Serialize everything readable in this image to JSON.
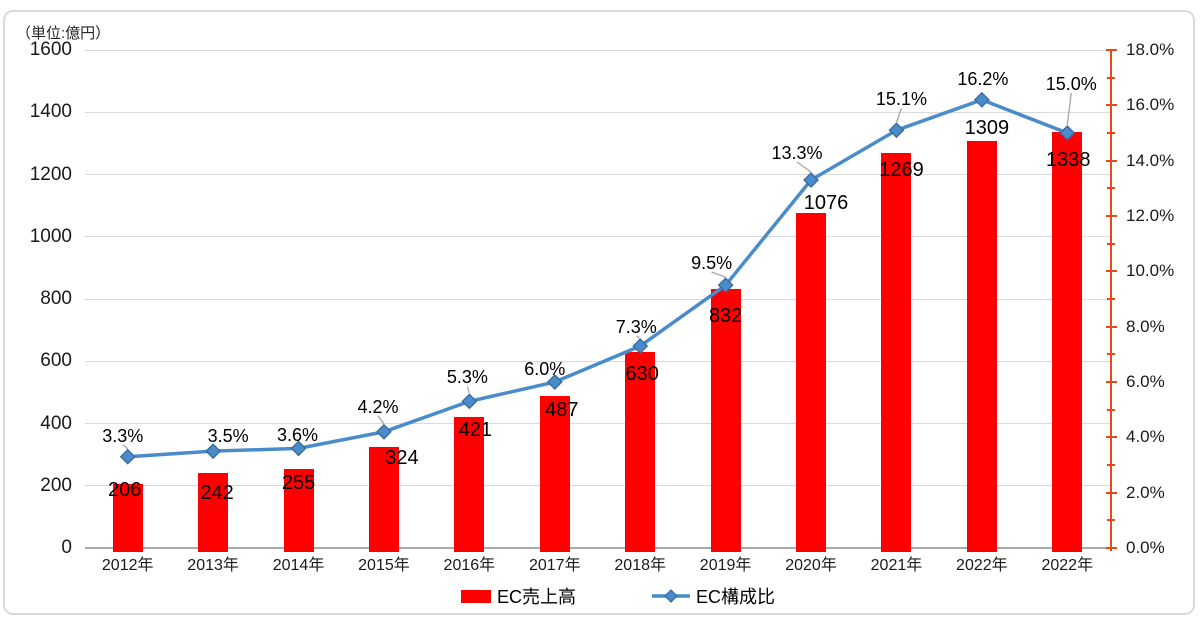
{
  "chart_data": {
    "type": "combo-bar-line",
    "unit_label": "（単位:億円）",
    "categories": [
      "2012年",
      "2013年",
      "2014年",
      "2015年",
      "2016年",
      "2017年",
      "2018年",
      "2019年",
      "2020年",
      "2021年",
      "2022年",
      "2022年"
    ],
    "series": [
      {
        "name": "EC売上高",
        "type": "bar",
        "axis": "left",
        "color": "#fe0000",
        "values": [
          206,
          242,
          255,
          324,
          421,
          487,
          630,
          832,
          1076,
          1269,
          1309,
          1338
        ],
        "value_labels": [
          "206",
          "242",
          "255",
          "324",
          "421",
          "487",
          "630",
          "832",
          "1076",
          "1269",
          "1309",
          "1338"
        ]
      },
      {
        "name": "EC構成比",
        "type": "line",
        "axis": "right",
        "color": "#4a8ccb",
        "marker": "diamond",
        "marker_stroke": "#36699e",
        "values": [
          3.3,
          3.5,
          3.6,
          4.2,
          5.3,
          6.0,
          7.3,
          9.5,
          13.3,
          15.1,
          16.2,
          15.0
        ],
        "value_labels": [
          "3.3%",
          "3.5%",
          "3.6%",
          "4.2%",
          "5.3%",
          "6.0%",
          "7.3%",
          "9.5%",
          "13.3%",
          "15.1%",
          "16.2%",
          "15.0%"
        ]
      }
    ],
    "left_axis": {
      "min": 0,
      "max": 1600,
      "step": 200,
      "tick_labels": [
        "0",
        "200",
        "400",
        "600",
        "800",
        "1000",
        "1200",
        "1400",
        "1600"
      ]
    },
    "right_axis": {
      "min": 0,
      "max": 18,
      "step": 2,
      "minor_step": 1,
      "color": "#e8481a",
      "tick_labels": [
        "0.0%",
        "2.0%",
        "4.0%",
        "6.0%",
        "8.0%",
        "10.0%",
        "12.0%",
        "14.0%",
        "16.0%",
        "18.0%"
      ]
    },
    "grid": {
      "horizontal": true,
      "vertical": false,
      "color": "#d9d9d9"
    },
    "legend_position": "bottom",
    "layout": {
      "bar_label_dx": [
        -3,
        4,
        0,
        18,
        6,
        7,
        2,
        0,
        15,
        5,
        5,
        1
      ],
      "bar_label_dy": [
        6,
        20,
        14,
        11,
        13,
        14,
        22,
        27,
        -10,
        17,
        -13,
        28
      ],
      "pct_label_dx": [
        -5,
        15,
        -1,
        -6,
        -2,
        -10,
        -4,
        -14,
        -14,
        5,
        1,
        4
      ],
      "pct_label_dy": [
        -21,
        -15,
        -13,
        -25,
        -24,
        -13,
        -19,
        -22,
        -27,
        -31,
        -21,
        -49
      ],
      "pct_leader": [
        true,
        false,
        true,
        true,
        true,
        false,
        true,
        true,
        true,
        true,
        false,
        true
      ],
      "leader_color": "#a6a6a6"
    }
  },
  "legend": {
    "items": [
      {
        "label": "EC売上高"
      },
      {
        "label": "EC構成比"
      }
    ]
  }
}
